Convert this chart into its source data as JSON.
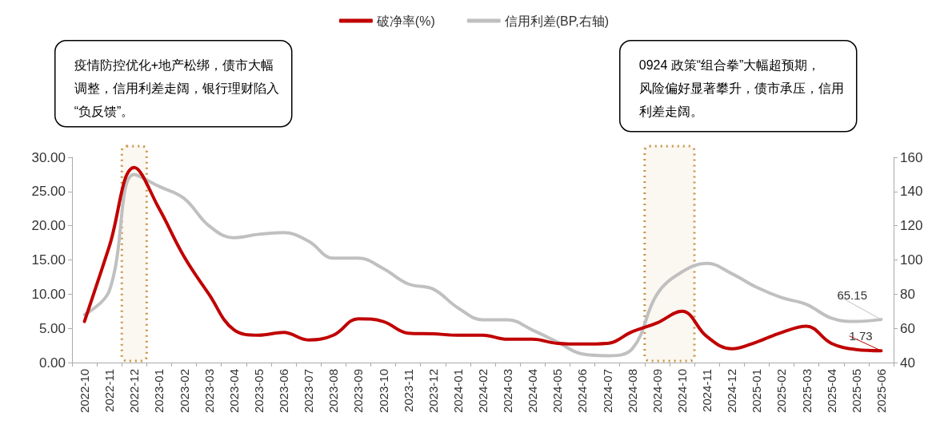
{
  "chart_data": {
    "type": "line",
    "categories": [
      "2022-10",
      "2022-11",
      "2022-12",
      "2023-01",
      "2023-02",
      "2023-03",
      "2023-04",
      "2023-05",
      "2023-06",
      "2023-07",
      "2023-08",
      "2023-09",
      "2023-10",
      "2023-11",
      "2023-12",
      "2024-01",
      "2024-02",
      "2024-03",
      "2024-04",
      "2024-05",
      "2024-06",
      "2024-07",
      "2024-08",
      "2024-09",
      "2024-10",
      "2024-11",
      "2024-12",
      "2025-01",
      "2025-02",
      "2025-03",
      "2025-04",
      "2025-05",
      "2025-06"
    ],
    "series": [
      {
        "name": "破净率(%)",
        "color": "#c00000",
        "values": [
          6.0,
          17.0,
          28.5,
          22.5,
          15.5,
          10.0,
          4.8,
          4.0,
          4.4,
          3.3,
          4.0,
          6.4,
          6.0,
          4.3,
          4.2,
          4.0,
          4.0,
          3.4,
          3.4,
          2.8,
          2.7,
          2.8,
          4.5,
          5.8,
          7.5,
          3.8,
          2.0,
          3.0,
          4.4,
          5.3,
          2.8,
          1.9,
          1.73
        ],
        "value_labels": [
          null,
          null,
          null,
          null,
          null,
          null,
          null,
          null,
          null,
          null,
          null,
          null,
          null,
          null,
          null,
          null,
          null,
          null,
          null,
          null,
          null,
          null,
          null,
          null,
          null,
          null,
          null,
          null,
          null,
          null,
          null,
          null,
          "1.73"
        ]
      },
      {
        "name": "信用利差(BP,右轴)",
        "color": "#c0c0c0",
        "axis": "y2",
        "values": [
          68,
          82,
          150,
          143,
          136,
          120,
          113,
          115,
          116,
          111,
          101,
          101,
          95,
          86,
          83,
          72,
          65,
          65,
          59,
          52,
          45,
          44,
          48,
          80,
          93,
          98,
          92,
          84,
          78,
          74,
          66,
          64,
          65.15
        ],
        "value_labels": [
          null,
          null,
          null,
          null,
          null,
          null,
          null,
          null,
          null,
          null,
          null,
          null,
          null,
          null,
          null,
          null,
          null,
          null,
          null,
          null,
          null,
          null,
          null,
          null,
          null,
          null,
          null,
          null,
          null,
          null,
          null,
          null,
          "65.15"
        ]
      }
    ],
    "ylim": [
      0,
      30
    ],
    "yticks": [
      {
        "value": 0,
        "label": "0.00"
      },
      {
        "value": 5,
        "label": "5.00"
      },
      {
        "value": 10,
        "label": "10.00"
      },
      {
        "value": 15,
        "label": "15.00"
      },
      {
        "value": 20,
        "label": "20.00"
      },
      {
        "value": 25,
        "label": "25.00"
      },
      {
        "value": 30,
        "label": "30.00"
      }
    ],
    "y2lim": [
      40,
      160
    ],
    "y2ticks": [
      40,
      60,
      80,
      100,
      120,
      140,
      160
    ],
    "bands": [
      {
        "axis": "x",
        "from": "2022-12",
        "to": "2022-12",
        "color": "#c8964b"
      },
      {
        "axis": "x",
        "from": "2024-09",
        "to": "2024-10",
        "color": "#c8964b"
      }
    ],
    "annotations": [
      "疫情防控优化+地产松绑，债市大幅调整，信用利差走阔，银行理财陷入“负反馈”。",
      "0924 政策“组合拳”大幅超预期，风险偏好显著攀升，债市承压，信用利差走阔。"
    ],
    "legend": "top",
    "grid": false,
    "marker": "none",
    "line_style": "solid"
  }
}
